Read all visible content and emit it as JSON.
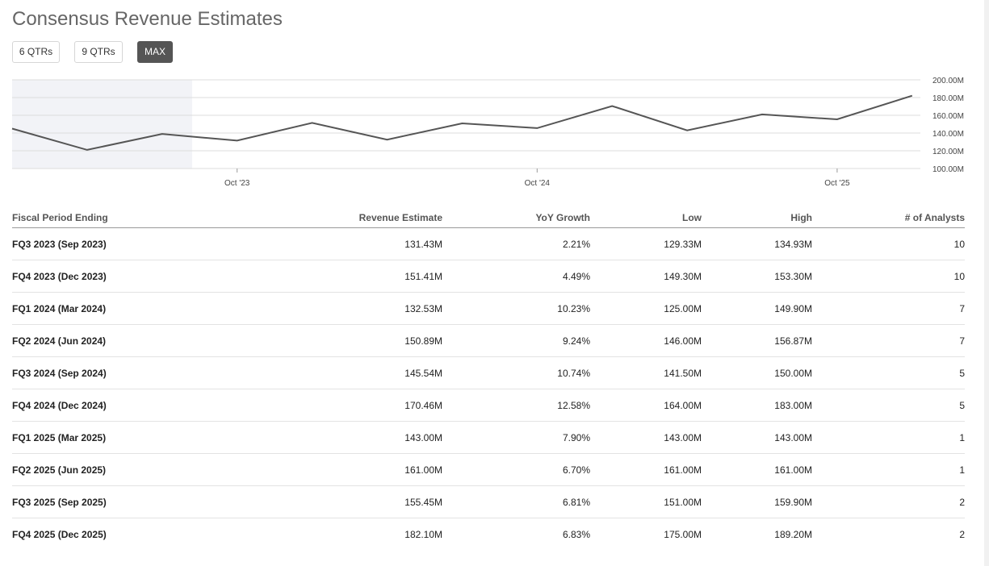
{
  "title": "Consensus Revenue Estimates",
  "range_buttons": [
    {
      "label": "6 QTRs",
      "active": false
    },
    {
      "label": "9 QTRs",
      "active": false
    },
    {
      "label": "MAX",
      "active": true
    }
  ],
  "chart_data": {
    "type": "line",
    "x": [
      "Jan 2023",
      "Apr 2023",
      "Jul 2023",
      "Oct 2023",
      "Jan 2024",
      "Apr 2024",
      "Jul 2024",
      "Oct 2024",
      "Jan 2025",
      "Apr 2025",
      "Jul 2025",
      "Oct 2025",
      "Jan 2026"
    ],
    "series": [
      {
        "values": [
          145,
          121,
          139,
          131.43,
          151.41,
          132.53,
          150.89,
          145.54,
          170.46,
          143.0,
          161.0,
          155.45,
          182.1
        ]
      }
    ],
    "ylim": [
      100,
      200
    ],
    "yticks": [
      "200.00M",
      "180.00M",
      "160.00M",
      "140.00M",
      "120.00M",
      "100.00M"
    ],
    "xticks": [
      "Oct '23",
      "Oct '24",
      "Oct '25"
    ],
    "grid": true,
    "shaded_region": "historical",
    "line_color": "#555555",
    "shade_color": "#f2f3f7"
  },
  "table": {
    "columns": [
      "Fiscal Period Ending",
      "Revenue Estimate",
      "YoY Growth",
      "Low",
      "High",
      "# of Analysts"
    ],
    "rows": [
      [
        "FQ3 2023 (Sep 2023)",
        "131.43M",
        "2.21%",
        "129.33M",
        "134.93M",
        "10"
      ],
      [
        "FQ4 2023 (Dec 2023)",
        "151.41M",
        "4.49%",
        "149.30M",
        "153.30M",
        "10"
      ],
      [
        "FQ1 2024 (Mar 2024)",
        "132.53M",
        "10.23%",
        "125.00M",
        "149.90M",
        "7"
      ],
      [
        "FQ2 2024 (Jun 2024)",
        "150.89M",
        "9.24%",
        "146.00M",
        "156.87M",
        "7"
      ],
      [
        "FQ3 2024 (Sep 2024)",
        "145.54M",
        "10.74%",
        "141.50M",
        "150.00M",
        "5"
      ],
      [
        "FQ4 2024 (Dec 2024)",
        "170.46M",
        "12.58%",
        "164.00M",
        "183.00M",
        "5"
      ],
      [
        "FQ1 2025 (Mar 2025)",
        "143.00M",
        "7.90%",
        "143.00M",
        "143.00M",
        "1"
      ],
      [
        "FQ2 2025 (Jun 2025)",
        "161.00M",
        "6.70%",
        "161.00M",
        "161.00M",
        "1"
      ],
      [
        "FQ3 2025 (Sep 2025)",
        "155.45M",
        "6.81%",
        "151.00M",
        "159.90M",
        "2"
      ],
      [
        "FQ4 2025 (Dec 2025)",
        "182.10M",
        "6.83%",
        "175.00M",
        "189.20M",
        "2"
      ]
    ]
  }
}
